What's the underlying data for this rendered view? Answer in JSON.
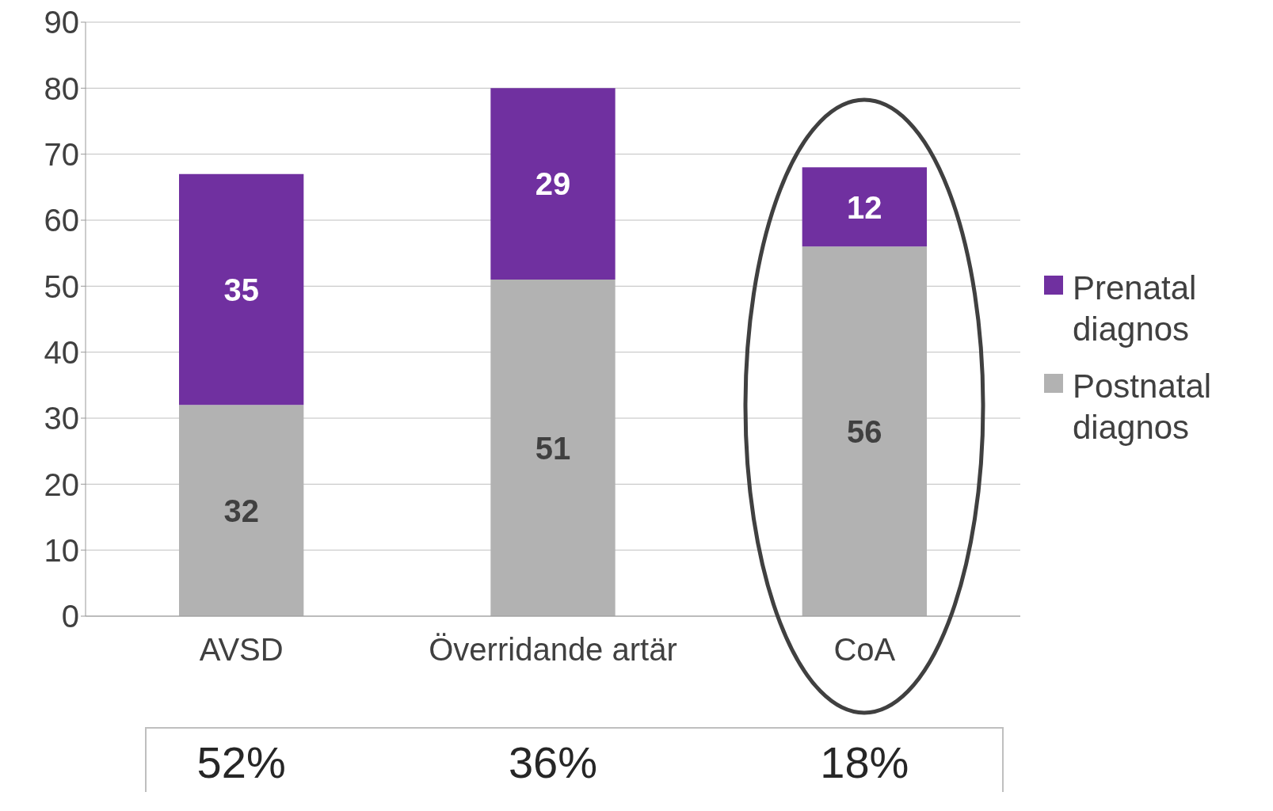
{
  "chart_data": {
    "type": "bar",
    "stacked": true,
    "categories": [
      "AVSD",
      "Överridande artär",
      "CoA"
    ],
    "series": [
      {
        "name": "Postnatal diagnos",
        "color": "#b2b2b2",
        "values": [
          32,
          51,
          56
        ]
      },
      {
        "name": "Prenatal diagnos",
        "color": "#7030a0",
        "values": [
          35,
          29,
          12
        ]
      }
    ],
    "ylim": [
      0,
      90
    ],
    "yticks": [
      0,
      10,
      20,
      30,
      40,
      50,
      60,
      70,
      80,
      90
    ],
    "grid": "y",
    "legend": "right",
    "data_labels": true,
    "annotations": [
      "52%",
      "36%",
      "18%"
    ]
  }
}
